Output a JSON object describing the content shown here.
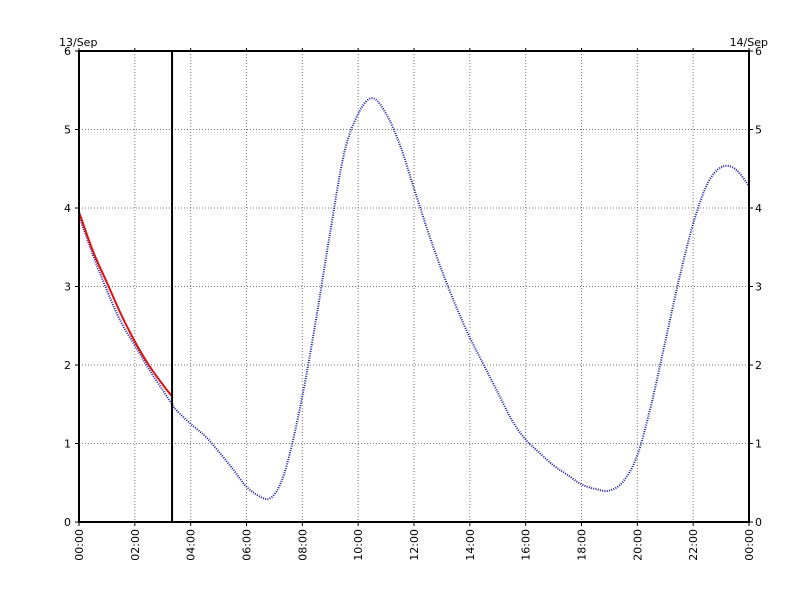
{
  "chart_data": {
    "type": "line",
    "date_left": "13/Sep",
    "date_right": "14/Sep",
    "xlim": [
      "13/Sep 00:00",
      "14/Sep 00:00"
    ],
    "ylim": [
      0,
      6
    ],
    "y_ticks": [
      "0",
      "1",
      "2",
      "3",
      "4",
      "5",
      "6"
    ],
    "x_ticks": [
      "00:00",
      "02:00",
      "04:00",
      "06:00",
      "08:00",
      "10:00",
      "12:00",
      "14:00",
      "16:00",
      "18:00",
      "20:00",
      "22:00",
      "00:00"
    ],
    "grid": true,
    "now_marker": "03:20",
    "colors": {
      "predicted": "#1a1aa6",
      "observed": "#e01010",
      "grid": "#777777",
      "axis": "#000000"
    },
    "series": [
      {
        "style": "dotted",
        "color": "#1a1aa6",
        "x": [
          "00:00",
          "00:30",
          "01:00",
          "01:30",
          "02:00",
          "02:30",
          "03:00",
          "03:20",
          "03:30",
          "04:00",
          "04:30",
          "05:00",
          "05:30",
          "06:00",
          "06:30",
          "06:50",
          "07:10",
          "07:30",
          "08:00",
          "08:30",
          "09:00",
          "09:30",
          "10:00",
          "10:30",
          "11:00",
          "11:30",
          "12:00",
          "12:30",
          "13:00",
          "13:30",
          "14:00",
          "14:30",
          "15:00",
          "15:30",
          "16:00",
          "16:30",
          "17:00",
          "17:30",
          "18:00",
          "18:30",
          "19:00",
          "19:30",
          "20:00",
          "20:30",
          "21:00",
          "21:30",
          "22:00",
          "22:30",
          "23:00",
          "23:30",
          "24:00"
        ],
        "values": [
          3.9,
          3.4,
          2.95,
          2.55,
          2.25,
          1.95,
          1.68,
          1.5,
          1.42,
          1.25,
          1.1,
          0.9,
          0.68,
          0.45,
          0.32,
          0.3,
          0.45,
          0.8,
          1.6,
          2.6,
          3.7,
          4.7,
          5.2,
          5.4,
          5.2,
          4.8,
          4.25,
          3.7,
          3.2,
          2.75,
          2.35,
          2.0,
          1.65,
          1.3,
          1.05,
          0.88,
          0.72,
          0.6,
          0.48,
          0.42,
          0.4,
          0.52,
          0.85,
          1.5,
          2.3,
          3.1,
          3.8,
          4.3,
          4.52,
          4.5,
          4.28
        ]
      },
      {
        "style": "solid",
        "color": "#e01010",
        "x": [
          "00:00",
          "00:30",
          "01:00",
          "01:30",
          "02:00",
          "02:30",
          "03:00",
          "03:20"
        ],
        "values": [
          3.95,
          3.45,
          3.05,
          2.65,
          2.3,
          2.0,
          1.75,
          1.6
        ]
      }
    ]
  }
}
